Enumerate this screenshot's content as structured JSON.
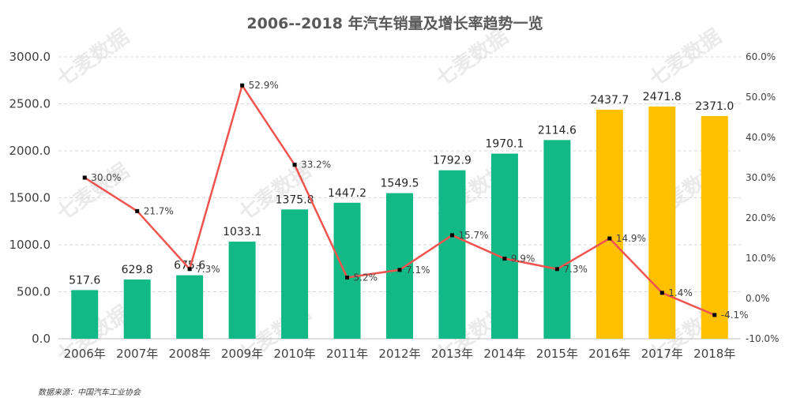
{
  "chart_data": {
    "type": "bar+line",
    "title": "2006--2018 年汽车销量及增长率趋势一览",
    "categories": [
      "2006年",
      "2007年",
      "2008年",
      "2009年",
      "2010年",
      "2011年",
      "2012年",
      "2013年",
      "2014年",
      "2015年",
      "2016年",
      "2017年",
      "2018年"
    ],
    "series": [
      {
        "type": "bar",
        "axis": "left",
        "values": [
          517.6,
          629.8,
          675.6,
          1033.1,
          1375.8,
          1447.2,
          1549.5,
          1792.9,
          1970.1,
          2114.6,
          2437.7,
          2471.8,
          2371.0
        ],
        "labels": [
          "517.6",
          "629.8",
          "675.6",
          "1033.1",
          "1375.8",
          "1447.2",
          "1549.5",
          "1792.9",
          "1970.1",
          "2114.6",
          "2437.7",
          "2471.8",
          "2371.0"
        ],
        "colors": [
          "#12b886",
          "#12b886",
          "#12b886",
          "#12b886",
          "#12b886",
          "#12b886",
          "#12b886",
          "#12b886",
          "#12b886",
          "#12b886",
          "#ffc000",
          "#ffc000",
          "#ffc000"
        ]
      },
      {
        "type": "line",
        "axis": "right",
        "values": [
          30.0,
          21.7,
          7.3,
          52.9,
          33.2,
          5.2,
          7.1,
          15.7,
          9.9,
          7.3,
          14.9,
          1.4,
          -4.1
        ],
        "labels": [
          "30.0%",
          "21.7%",
          "7.3%",
          "52.9%",
          "33.2%",
          "5.2%",
          "7.1%",
          "15.7%",
          "9.9%",
          "7.3%",
          "14.9%",
          "1.4%",
          "-4.1%"
        ],
        "color": "#f0544f"
      }
    ],
    "y_left": {
      "range": [
        0,
        3000
      ],
      "ticks": [
        "0.0",
        "500.0",
        "1000.0",
        "1500.0",
        "2000.0",
        "2500.0",
        "3000.0"
      ]
    },
    "y_right": {
      "range": [
        -10,
        60
      ],
      "ticks": [
        "-10.0%",
        "0.0%",
        "10.0%",
        "20.0%",
        "30.0%",
        "40.0%",
        "50.0%",
        "60.0%"
      ]
    },
    "grid": true
  },
  "source": "数据来源：中国汽车工业协会",
  "watermark": "七麦数据"
}
